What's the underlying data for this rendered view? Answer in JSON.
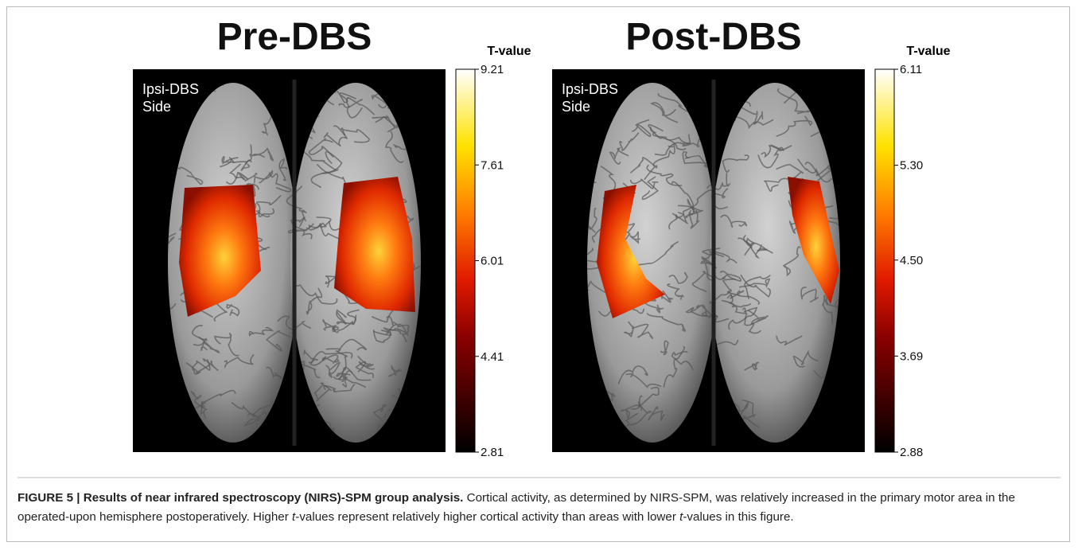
{
  "panels": [
    {
      "title": "Pre-DBS",
      "label": [
        "Ipsi-DBS",
        "Side"
      ],
      "colorbar": {
        "title": "T-value",
        "lim": [
          2.81,
          9.21
        ],
        "ticks": [
          9.21,
          7.61,
          6.01,
          4.41,
          2.81
        ]
      }
    },
    {
      "title": "Post-DBS",
      "label": [
        "Ipsi-DBS",
        "Side"
      ],
      "colorbar": {
        "title": "T-value",
        "lim": [
          2.88,
          6.11
        ],
        "ticks": [
          6.11,
          {
            "value": 5.3,
            "label": "5.30"
          },
          {
            "value": 4.5,
            "label": "4.50"
          },
          3.69,
          2.88
        ]
      }
    }
  ],
  "caption": [
    {
      "text": "FIGURE 5 | Results of near infrared spectroscopy (NIRS)-SPM group analysis.",
      "style": "bold"
    },
    {
      "text": " Cortical activity, as determined by NIRS-SPM, was relatively increased in the primary motor area in the operated-upon hemisphere postoperatively. Higher ",
      "style": "normal"
    },
    {
      "text": "t",
      "style": "italic"
    },
    {
      "text": "-values represent relatively higher cortical activity than areas with lower ",
      "style": "normal"
    },
    {
      "text": "t",
      "style": "italic"
    },
    {
      "text": "-values in this figure.",
      "style": "normal"
    }
  ]
}
